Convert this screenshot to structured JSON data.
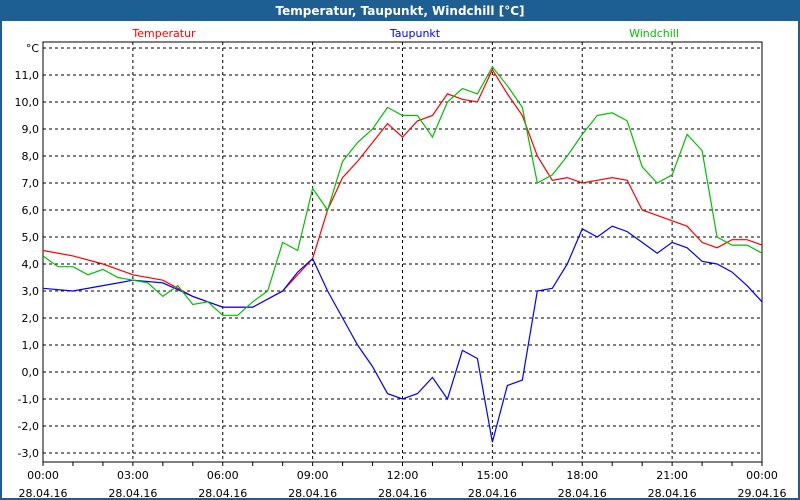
{
  "window": {
    "title": "Temperatur, Taupunkt, Windchill [°C]"
  },
  "chart_data": {
    "type": "line",
    "title": "Temperatur, Taupunkt, Windchill [°C]",
    "ylabel": "°C",
    "ylim": [
      -3.33,
      12.2
    ],
    "xlim": [
      0,
      24
    ],
    "grid": true,
    "yticks": [
      -3,
      -2,
      -1,
      0,
      1,
      2,
      3,
      4,
      5,
      6,
      7,
      8,
      9,
      10,
      11
    ],
    "ytick_labels": [
      "-3,0",
      "-2,0",
      "-1,0",
      "0,0",
      "1,0",
      "2,0",
      "3,0",
      "4,0",
      "5,0",
      "6,0",
      "7,0",
      "8,0",
      "9,0",
      "10,0",
      "11,0"
    ],
    "xticks": [
      0,
      3,
      6,
      9,
      12,
      15,
      18,
      21,
      24
    ],
    "xtick_labels": [
      [
        "00:00",
        "28.04.16"
      ],
      [
        "03:00",
        "28.04.16"
      ],
      [
        "06:00",
        "28.04.16"
      ],
      [
        "09:00",
        "28.04.16"
      ],
      [
        "12:00",
        "28.04.16"
      ],
      [
        "15:00",
        "28.04.16"
      ],
      [
        "18:00",
        "28.04.16"
      ],
      [
        "21:00",
        "28.04.16"
      ],
      [
        "00:00",
        "29.04.16"
      ]
    ],
    "series": [
      {
        "name": "Temperatur",
        "color": "#ff0000",
        "x": [
          0,
          1,
          2,
          3,
          4,
          5,
          6,
          7,
          8,
          9,
          9.5,
          10,
          10.5,
          11,
          11.5,
          12,
          12.5,
          13,
          13.5,
          14,
          14.5,
          15,
          15.5,
          16,
          16.5,
          17,
          17.5,
          18,
          18.5,
          19,
          19.5,
          20,
          20.5,
          21,
          21.5,
          22,
          22.5,
          23,
          23.5,
          24
        ],
        "values": [
          4.5,
          4.3,
          4.0,
          3.6,
          3.4,
          2.8,
          2.4,
          2.4,
          3.0,
          4.2,
          6.0,
          7.2,
          7.8,
          8.5,
          9.2,
          8.7,
          9.3,
          9.5,
          10.3,
          10.1,
          10.0,
          11.2,
          10.3,
          9.5,
          8.0,
          7.1,
          7.2,
          7.0,
          7.1,
          7.2,
          7.1,
          6.0,
          5.8,
          5.6,
          5.4,
          4.8,
          4.6,
          4.9,
          4.9,
          4.7
        ]
      },
      {
        "name": "Taupunkt",
        "color": "#0000ff",
        "x": [
          0,
          1,
          2,
          3,
          4,
          5,
          6,
          7,
          8,
          8.5,
          9,
          9.5,
          10,
          10.5,
          11,
          11.5,
          12,
          12.5,
          13,
          13.5,
          14,
          14.5,
          15,
          15.5,
          16,
          16.5,
          17,
          17.5,
          18,
          18.5,
          19,
          19.5,
          20,
          20.5,
          21,
          21.5,
          22,
          22.5,
          23,
          23.5,
          24
        ],
        "values": [
          3.1,
          3.0,
          3.2,
          3.4,
          3.3,
          2.8,
          2.4,
          2.4,
          3.0,
          3.7,
          4.2,
          3.0,
          2.0,
          1.0,
          0.2,
          -0.8,
          -1.0,
          -0.8,
          -0.2,
          -1.0,
          0.8,
          0.5,
          -2.6,
          -0.5,
          -0.3,
          3.0,
          3.1,
          4.0,
          5.3,
          5.0,
          5.4,
          5.2,
          4.8,
          4.4,
          4.8,
          4.6,
          4.1,
          4.0,
          3.7,
          3.2,
          2.6
        ]
      },
      {
        "name": "Windchill",
        "color": "#00c000",
        "x": [
          0,
          0.5,
          1,
          1.5,
          2,
          2.5,
          3,
          3.5,
          4,
          4.5,
          5,
          5.5,
          6,
          6.5,
          7,
          7.5,
          8,
          8.5,
          9,
          9.5,
          10,
          10.5,
          11,
          11.5,
          12,
          12.5,
          13,
          13.5,
          14,
          14.5,
          15,
          15.5,
          16,
          16.5,
          17,
          17.5,
          18,
          18.5,
          19,
          19.5,
          20,
          20.5,
          21,
          21.5,
          22,
          22.5,
          23,
          23.5,
          24
        ],
        "values": [
          4.3,
          3.9,
          3.9,
          3.6,
          3.8,
          3.5,
          3.4,
          3.3,
          2.8,
          3.2,
          2.5,
          2.6,
          2.1,
          2.1,
          2.6,
          3.0,
          4.8,
          4.5,
          6.8,
          6.0,
          7.8,
          8.5,
          9.0,
          9.8,
          9.5,
          9.5,
          8.7,
          10.0,
          10.5,
          10.3,
          11.3,
          10.6,
          9.8,
          7.0,
          7.3,
          8.0,
          8.8,
          9.5,
          9.6,
          9.3,
          7.6,
          7.0,
          7.3,
          8.8,
          8.2,
          5.0,
          4.7,
          4.7,
          4.4
        ]
      }
    ]
  }
}
